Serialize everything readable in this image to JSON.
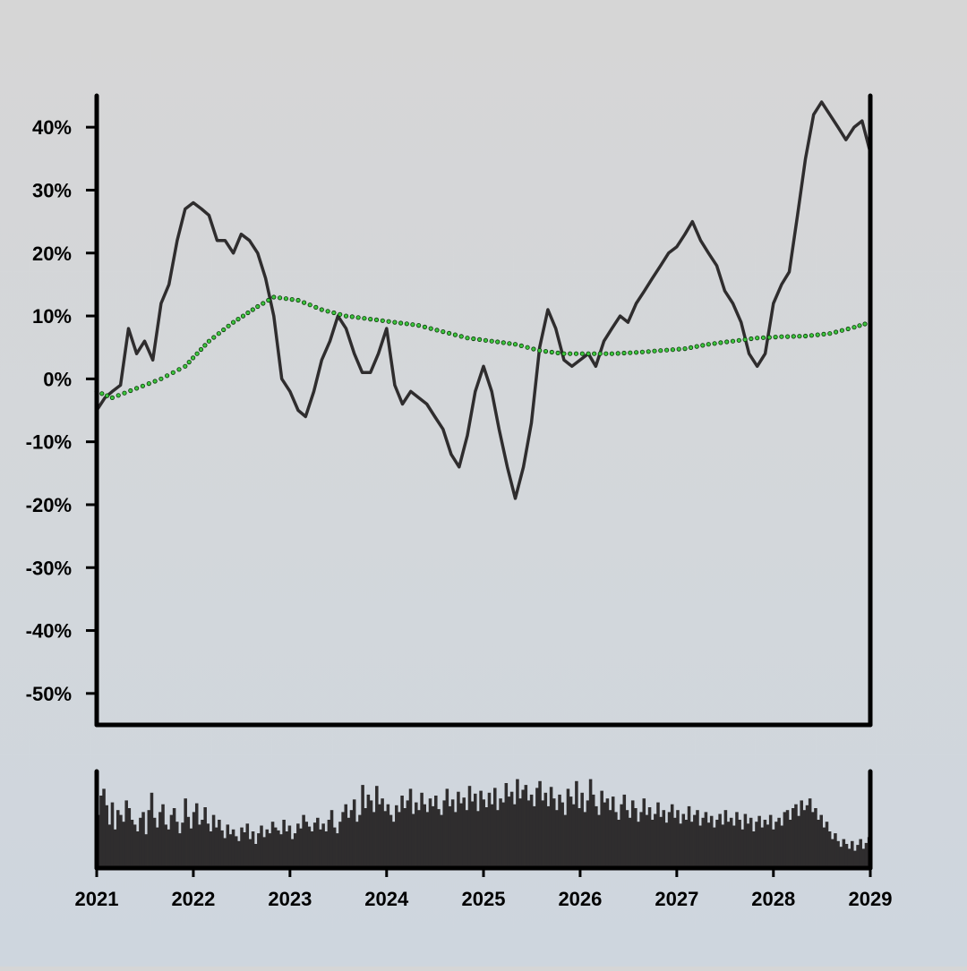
{
  "chart_data": {
    "type": "line",
    "title": "",
    "xlabel": "",
    "ylabel": "",
    "ylim": [
      -0.55,
      0.45
    ],
    "xlim": [
      "2021-01-01",
      "2029-01-01"
    ],
    "y_tick_format": "percent",
    "y_ticks": [
      "40%",
      "30%",
      "20%",
      "10%",
      "0%",
      "-10%",
      "-20%",
      "-30%",
      "-40%",
      "-50%"
    ],
    "y_tick_values": [
      0.4,
      0.3,
      0.2,
      0.1,
      0.0,
      -0.1,
      -0.2,
      -0.3,
      -0.4,
      -0.5
    ],
    "x_ticks": [
      "2021",
      "2022",
      "2023",
      "2024",
      "2025",
      "2026",
      "2027",
      "2028",
      "2029"
    ],
    "x_tick_values": [
      "2021-01-01",
      "2022-01-01",
      "2023-01-01",
      "2024-01-01",
      "2025-01-01",
      "2026-01-01",
      "2027-01-01",
      "2028-01-01",
      "2029-01-01"
    ],
    "grid": false,
    "legend": "none",
    "colors": {
      "price": "#2f2d2e",
      "trend_fill": "#3cc63c",
      "trend_stroke": "#0a3a0a",
      "volume": "#2f2d2e"
    },
    "series": [
      {
        "style": "line",
        "x": [
          "2021-01-01",
          "2021-02-01",
          "2021-03-01",
          "2021-04-01",
          "2021-05-01",
          "2021-06-01",
          "2021-07-01",
          "2021-08-01",
          "2021-09-01",
          "2021-10-01",
          "2021-11-01",
          "2021-12-01",
          "2022-01-01",
          "2022-02-01",
          "2022-03-01",
          "2022-04-01",
          "2022-05-01",
          "2022-06-01",
          "2022-07-01",
          "2022-08-01",
          "2022-09-01",
          "2022-10-01",
          "2022-11-01",
          "2022-12-01",
          "2023-01-01",
          "2023-02-01",
          "2023-03-01",
          "2023-04-01",
          "2023-05-01",
          "2023-06-01",
          "2023-07-01",
          "2023-08-01",
          "2023-09-01",
          "2023-10-01",
          "2023-11-01",
          "2023-12-01",
          "2024-01-01",
          "2024-02-01",
          "2024-03-01",
          "2024-04-01",
          "2024-05-01",
          "2024-06-01",
          "2024-07-01",
          "2024-08-01",
          "2024-09-01",
          "2024-10-01",
          "2024-11-01",
          "2024-12-01",
          "2025-01-01",
          "2025-02-01",
          "2025-03-01",
          "2025-04-01",
          "2025-05-01",
          "2025-06-01",
          "2025-07-01",
          "2025-08-01",
          "2025-09-01",
          "2025-10-01",
          "2025-11-01",
          "2025-12-01",
          "2026-01-01",
          "2026-02-01",
          "2026-03-01",
          "2026-04-01",
          "2026-05-01",
          "2026-06-01",
          "2026-07-01",
          "2026-08-01",
          "2026-09-01",
          "2026-10-01",
          "2026-11-01",
          "2026-12-01",
          "2027-01-01",
          "2027-02-01",
          "2027-03-01",
          "2027-04-01",
          "2027-05-01",
          "2027-06-01",
          "2027-07-01",
          "2027-08-01",
          "2027-09-01",
          "2027-10-01",
          "2027-11-01",
          "2027-12-01",
          "2028-01-01",
          "2028-02-01",
          "2028-03-01",
          "2028-04-01",
          "2028-05-01",
          "2028-06-01",
          "2028-07-01",
          "2028-08-01",
          "2028-09-01",
          "2028-10-01",
          "2028-11-01",
          "2028-12-01",
          "2029-01-01"
        ],
        "values": [
          -0.05,
          -0.03,
          -0.02,
          -0.01,
          0.08,
          0.04,
          0.06,
          0.03,
          0.12,
          0.15,
          0.22,
          0.27,
          0.28,
          0.27,
          0.26,
          0.22,
          0.22,
          0.2,
          0.23,
          0.22,
          0.2,
          0.16,
          0.1,
          0.0,
          -0.02,
          -0.05,
          -0.06,
          -0.02,
          0.03,
          0.06,
          0.1,
          0.08,
          0.04,
          0.01,
          0.01,
          0.04,
          0.08,
          -0.01,
          -0.04,
          -0.02,
          -0.03,
          -0.04,
          -0.06,
          -0.08,
          -0.12,
          -0.14,
          -0.09,
          -0.02,
          0.02,
          -0.02,
          -0.08,
          -0.14,
          -0.19,
          -0.14,
          -0.07,
          0.05,
          0.11,
          0.08,
          0.03,
          0.02,
          0.03,
          0.04,
          0.02,
          0.06,
          0.08,
          0.1,
          0.09,
          0.12,
          0.14,
          0.16,
          0.18,
          0.2,
          0.21,
          0.23,
          0.25,
          0.22,
          0.2,
          0.18,
          0.14,
          0.12,
          0.09,
          0.04,
          0.02,
          0.04,
          0.12,
          0.15,
          0.17,
          0.26,
          0.35,
          0.42,
          0.44,
          0.42,
          0.4,
          0.38,
          0.4,
          0.41,
          0.36
        ]
      },
      {
        "style": "dotted",
        "x": [
          "2021-01-01",
          "2021-03-01",
          "2021-06-01",
          "2021-09-01",
          "2021-12-01",
          "2022-03-01",
          "2022-06-01",
          "2022-09-01",
          "2022-11-01",
          "2023-02-01",
          "2023-05-01",
          "2023-08-01",
          "2023-11-01",
          "2024-02-01",
          "2024-05-01",
          "2024-08-01",
          "2024-11-01",
          "2025-02-01",
          "2025-05-01",
          "2025-08-01",
          "2025-11-01",
          "2026-02-01",
          "2026-05-01",
          "2026-08-01",
          "2026-11-01",
          "2027-02-01",
          "2027-05-01",
          "2027-08-01",
          "2027-11-01",
          "2028-02-01",
          "2028-05-01",
          "2028-08-01",
          "2028-11-01",
          "2029-01-01"
        ],
        "values": [
          -0.02,
          -0.03,
          -0.015,
          0.0,
          0.02,
          0.06,
          0.09,
          0.115,
          0.13,
          0.125,
          0.11,
          0.1,
          0.095,
          0.09,
          0.085,
          0.075,
          0.065,
          0.06,
          0.055,
          0.045,
          0.04,
          0.04,
          0.04,
          0.042,
          0.045,
          0.048,
          0.055,
          0.06,
          0.065,
          0.067,
          0.068,
          0.072,
          0.082,
          0.09
        ]
      }
    ],
    "volume": {
      "x_start": "2021-01-01",
      "x_end": "2029-01-01",
      "values": [
        0.55,
        0.75,
        0.82,
        0.65,
        0.45,
        0.68,
        0.4,
        0.6,
        0.55,
        0.48,
        0.7,
        0.62,
        0.5,
        0.45,
        0.38,
        0.52,
        0.58,
        0.35,
        0.6,
        0.78,
        0.52,
        0.42,
        0.58,
        0.66,
        0.45,
        0.4,
        0.55,
        0.62,
        0.48,
        0.36,
        0.47,
        0.72,
        0.53,
        0.41,
        0.58,
        0.67,
        0.45,
        0.5,
        0.63,
        0.46,
        0.38,
        0.55,
        0.42,
        0.5,
        0.39,
        0.31,
        0.45,
        0.35,
        0.4,
        0.33,
        0.28,
        0.42,
        0.37,
        0.46,
        0.3,
        0.38,
        0.25,
        0.36,
        0.44,
        0.32,
        0.4,
        0.36,
        0.48,
        0.42,
        0.39,
        0.35,
        0.5,
        0.38,
        0.44,
        0.3,
        0.36,
        0.46,
        0.41,
        0.55,
        0.48,
        0.43,
        0.38,
        0.47,
        0.52,
        0.4,
        0.46,
        0.38,
        0.5,
        0.6,
        0.42,
        0.36,
        0.48,
        0.58,
        0.66,
        0.52,
        0.6,
        0.71,
        0.48,
        0.55,
        0.86,
        0.62,
        0.76,
        0.7,
        0.58,
        0.85,
        0.66,
        0.72,
        0.59,
        0.66,
        0.55,
        0.48,
        0.65,
        0.58,
        0.75,
        0.62,
        0.7,
        0.82,
        0.56,
        0.68,
        0.6,
        0.78,
        0.66,
        0.58,
        0.72,
        0.64,
        0.75,
        0.61,
        0.55,
        0.7,
        0.82,
        0.64,
        0.71,
        0.58,
        0.79,
        0.67,
        0.73,
        0.6,
        0.85,
        0.69,
        0.77,
        0.59,
        0.8,
        0.71,
        0.63,
        0.78,
        0.66,
        0.83,
        0.6,
        0.72,
        0.68,
        0.88,
        0.74,
        0.79,
        0.66,
        0.92,
        0.72,
        0.81,
        0.86,
        0.7,
        0.76,
        0.64,
        0.83,
        0.9,
        0.7,
        0.78,
        0.64,
        0.84,
        0.72,
        0.6,
        0.76,
        0.68,
        0.55,
        0.82,
        0.74,
        0.66,
        0.9,
        0.62,
        0.78,
        0.58,
        0.7,
        0.92,
        0.76,
        0.64,
        0.55,
        0.8,
        0.68,
        0.72,
        0.6,
        0.74,
        0.58,
        0.5,
        0.66,
        0.76,
        0.6,
        0.52,
        0.7,
        0.62,
        0.48,
        0.58,
        0.72,
        0.55,
        0.63,
        0.5,
        0.56,
        0.68,
        0.53,
        0.6,
        0.47,
        0.58,
        0.66,
        0.52,
        0.6,
        0.46,
        0.56,
        0.5,
        0.64,
        0.48,
        0.55,
        0.6,
        0.44,
        0.52,
        0.58,
        0.47,
        0.54,
        0.42,
        0.5,
        0.56,
        0.45,
        0.6,
        0.48,
        0.52,
        0.44,
        0.58,
        0.5,
        0.4,
        0.56,
        0.46,
        0.52,
        0.38,
        0.48,
        0.54,
        0.42,
        0.5,
        0.45,
        0.55,
        0.4,
        0.48,
        0.52,
        0.44,
        0.58,
        0.6,
        0.5,
        0.62,
        0.66,
        0.54,
        0.7,
        0.6,
        0.65,
        0.72,
        0.58,
        0.62,
        0.5,
        0.55,
        0.42,
        0.48,
        0.38,
        0.3,
        0.36,
        0.28,
        0.22,
        0.3,
        0.25,
        0.2,
        0.28,
        0.18,
        0.24,
        0.3,
        0.2,
        0.26,
        0.32
      ]
    }
  }
}
